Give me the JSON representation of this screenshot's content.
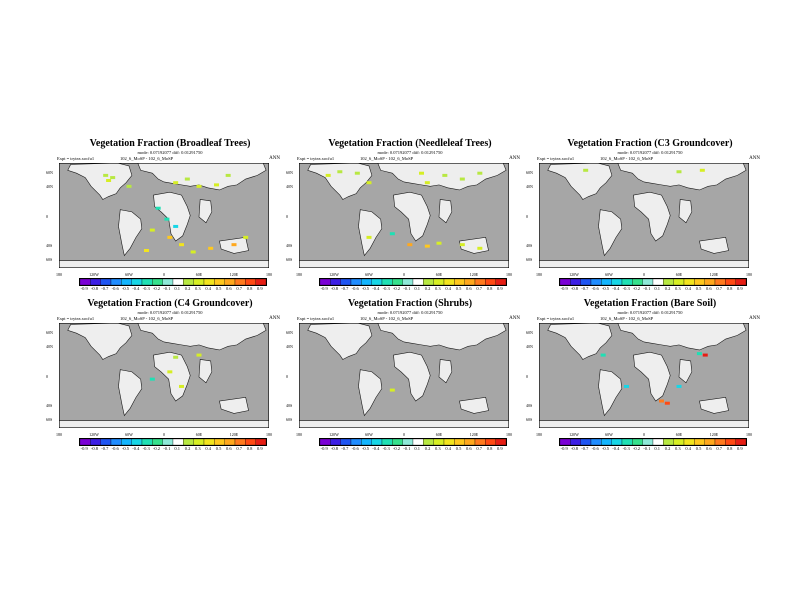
{
  "chart_data": [
    {
      "type": "map",
      "title": "Vegetation Fraction (Broadleaf Trees)",
      "subtitle": "mode: 0.07192077 diff: 0.01291750",
      "expt": "Expt = trytea.xocfu1",
      "model_label": "102_6_MoSP - 102_6_MoSP",
      "season": "ANN",
      "lat_labels": [
        "60N",
        "40N",
        "0",
        "40S",
        "60S"
      ],
      "lon_labels": [
        "180",
        "120W",
        "60W",
        "0",
        "60E",
        "120E",
        "180"
      ],
      "colorbar_labels": [
        "-0.9",
        "-0.8",
        "-0.7",
        "-0.6",
        "-0.5",
        "-0.4",
        "-0.3",
        "-0.2",
        "-0.1",
        "0.1",
        "0.2",
        "0.3",
        "0.4",
        "0.5",
        "0.6",
        "0.7",
        "0.8",
        "0.9"
      ],
      "anomalies": [
        {
          "lon": -100,
          "lat": 55,
          "value": 0.15
        },
        {
          "lon": -88,
          "lat": 52,
          "value": 0.12
        },
        {
          "lon": -95,
          "lat": 48,
          "value": 0.2
        },
        {
          "lon": -60,
          "lat": 40,
          "value": 0.1
        },
        {
          "lon": 20,
          "lat": 45,
          "value": 0.2
        },
        {
          "lon": 40,
          "lat": 50,
          "value": 0.15
        },
        {
          "lon": 60,
          "lat": 40,
          "value": 0.3
        },
        {
          "lon": 90,
          "lat": 42,
          "value": 0.25
        },
        {
          "lon": 110,
          "lat": 55,
          "value": 0.15
        },
        {
          "lon": -10,
          "lat": 10,
          "value": -0.3
        },
        {
          "lon": 5,
          "lat": -5,
          "value": -0.35
        },
        {
          "lon": 20,
          "lat": -15,
          "value": -0.4
        },
        {
          "lon": 10,
          "lat": -30,
          "value": 0.4
        },
        {
          "lon": -20,
          "lat": -20,
          "value": 0.3
        },
        {
          "lon": 30,
          "lat": -40,
          "value": 0.35
        },
        {
          "lon": 80,
          "lat": -45,
          "value": 0.45
        },
        {
          "lon": 120,
          "lat": -40,
          "value": 0.55
        },
        {
          "lon": 140,
          "lat": -30,
          "value": 0.2
        },
        {
          "lon": 50,
          "lat": -50,
          "value": 0.3
        },
        {
          "lon": -30,
          "lat": -48,
          "value": 0.35
        }
      ]
    },
    {
      "type": "map",
      "title": "Vegetation Fraction (Needleleaf Trees)",
      "subtitle": "mode: 0.07192077 diff: 0.01291750",
      "expt": "Expt = trytea.xocfu1",
      "model_label": "102_6_MoSP - 102_6_MoSP",
      "season": "ANN",
      "lat_labels": [
        "60N",
        "40N",
        "0",
        "40S",
        "60S"
      ],
      "lon_labels": [
        "180",
        "120W",
        "60W",
        "0",
        "60E",
        "120E",
        "180"
      ],
      "colorbar_labels": [
        "-0.9",
        "-0.8",
        "-0.7",
        "-0.6",
        "-0.5",
        "-0.4",
        "-0.3",
        "-0.2",
        "-0.1",
        "0.1",
        "0.2",
        "0.3",
        "0.4",
        "0.5",
        "0.6",
        "0.7",
        "0.8",
        "0.9"
      ],
      "anomalies": [
        {
          "lon": -110,
          "lat": 60,
          "value": 0.15
        },
        {
          "lon": -80,
          "lat": 58,
          "value": 0.1
        },
        {
          "lon": -130,
          "lat": 55,
          "value": 0.2
        },
        {
          "lon": 30,
          "lat": 58,
          "value": 0.2
        },
        {
          "lon": 70,
          "lat": 55,
          "value": 0.15
        },
        {
          "lon": 100,
          "lat": 50,
          "value": 0.1
        },
        {
          "lon": 130,
          "lat": 58,
          "value": 0.15
        },
        {
          "lon": -60,
          "lat": 45,
          "value": 0.2
        },
        {
          "lon": 40,
          "lat": 45,
          "value": 0.2
        },
        {
          "lon": 10,
          "lat": -40,
          "value": 0.5
        },
        {
          "lon": 40,
          "lat": -42,
          "value": 0.4
        },
        {
          "lon": 60,
          "lat": -38,
          "value": 0.3
        },
        {
          "lon": -20,
          "lat": -25,
          "value": -0.3
        },
        {
          "lon": 100,
          "lat": -40,
          "value": 0.3
        },
        {
          "lon": 130,
          "lat": -45,
          "value": 0.2
        },
        {
          "lon": -60,
          "lat": -30,
          "value": 0.25
        }
      ]
    },
    {
      "type": "map",
      "title": "Vegetation Fraction (C3 Groundcover)",
      "subtitle": "mode: 0.07192077 diff: 0.01291750",
      "expt": "Expt = trytea.xocfu1",
      "model_label": "102_6_MoSP - 102_6_MoSP",
      "season": "ANN",
      "lat_labels": [
        "60N",
        "40N",
        "0",
        "40S",
        "60S"
      ],
      "lon_labels": [
        "180",
        "120W",
        "60W",
        "0",
        "60E",
        "120E",
        "180"
      ],
      "colorbar_labels": [
        "-0.9",
        "-0.8",
        "-0.7",
        "-0.6",
        "-0.5",
        "-0.4",
        "-0.3",
        "-0.2",
        "-0.1",
        "0.1",
        "0.2",
        "0.3",
        "0.4",
        "0.5",
        "0.6",
        "0.7",
        "0.8",
        "0.9"
      ],
      "anomalies": [
        {
          "lon": 100,
          "lat": 62,
          "value": 0.2
        },
        {
          "lon": 60,
          "lat": 60,
          "value": 0.1
        },
        {
          "lon": -100,
          "lat": 62,
          "value": 0.1
        }
      ]
    },
    {
      "type": "map",
      "title": "Vegetation Fraction (C4 Groundcover)",
      "subtitle": "mode: 0.07192077 diff: 0.01291750",
      "expt": "Expt = trytea.xocfu1",
      "model_label": "102_6_MoSP - 102_6_MoSP",
      "season": "ANN",
      "lat_labels": [
        "60N",
        "40N",
        "0",
        "40S",
        "60S"
      ],
      "lon_labels": [
        "180",
        "120W",
        "60W",
        "0",
        "60E",
        "120E",
        "180"
      ],
      "colorbar_labels": [
        "-0.9",
        "-0.8",
        "-0.7",
        "-0.6",
        "-0.5",
        "-0.4",
        "-0.3",
        "-0.2",
        "-0.1",
        "0.1",
        "0.2",
        "0.3",
        "0.4",
        "0.5",
        "0.6",
        "0.7",
        "0.8",
        "0.9"
      ],
      "anomalies": [
        {
          "lon": 20,
          "lat": 25,
          "value": 0.15
        },
        {
          "lon": 60,
          "lat": 28,
          "value": 0.2
        },
        {
          "lon": 10,
          "lat": 5,
          "value": 0.2
        },
        {
          "lon": -20,
          "lat": -5,
          "value": -0.3
        },
        {
          "lon": 30,
          "lat": -15,
          "value": 0.3
        }
      ]
    },
    {
      "type": "map",
      "title": "Vegetation Fraction (Shrubs)",
      "subtitle": "mode: 0.07192077 diff: 0.01291750",
      "expt": "Expt = trytea.xocfu1",
      "model_label": "102_6_MoSP - 102_6_MoSP",
      "season": "ANN",
      "lat_labels": [
        "60N",
        "40N",
        "0",
        "40S",
        "60S"
      ],
      "lon_labels": [
        "180",
        "120W",
        "60W",
        "0",
        "60E",
        "120E",
        "180"
      ],
      "colorbar_labels": [
        "-0.9",
        "-0.8",
        "-0.7",
        "-0.6",
        "-0.5",
        "-0.4",
        "-0.3",
        "-0.2",
        "-0.1",
        "0.1",
        "0.2",
        "0.3",
        "0.4",
        "0.5",
        "0.6",
        "0.7",
        "0.8",
        "0.9"
      ],
      "anomalies": [
        {
          "lon": -20,
          "lat": -20,
          "value": 0.25
        }
      ]
    },
    {
      "type": "map",
      "title": "Vegetation Fraction (Bare Soil)",
      "subtitle": "mode: 0.07192077 diff: 0.01291750",
      "expt": "Expt = trytea.xocfu1",
      "model_label": "102_6_MoSP - 102_6_MoSP",
      "season": "ANN",
      "lat_labels": [
        "60N",
        "40N",
        "0",
        "40S",
        "60S"
      ],
      "lon_labels": [
        "180",
        "120W",
        "60W",
        "0",
        "60E",
        "120E",
        "180"
      ],
      "colorbar_labels": [
        "-0.9",
        "-0.8",
        "-0.7",
        "-0.6",
        "-0.5",
        "-0.4",
        "-0.3",
        "-0.2",
        "-0.1",
        "0.1",
        "0.2",
        "0.3",
        "0.4",
        "0.5",
        "0.6",
        "0.7",
        "0.8",
        "0.9"
      ],
      "anomalies": [
        {
          "lon": -70,
          "lat": 28,
          "value": -0.3
        },
        {
          "lon": 95,
          "lat": 30,
          "value": -0.3
        },
        {
          "lon": 105,
          "lat": 28,
          "value": 0.8
        },
        {
          "lon": -30,
          "lat": -15,
          "value": -0.4
        },
        {
          "lon": 30,
          "lat": -35,
          "value": 0.7
        },
        {
          "lon": 40,
          "lat": -38,
          "value": 0.75
        },
        {
          "lon": 60,
          "lat": -15,
          "value": -0.5
        }
      ]
    }
  ],
  "colors": {
    "ocean": "#a6a6a6",
    "land": "#eeeeee",
    "coast": "#1a1a1a",
    "scale": [
      "#7a00d6",
      "#3c1fe6",
      "#1f55f2",
      "#1f8cff",
      "#12b5ff",
      "#18d6e6",
      "#1ee0b4",
      "#36e08c",
      "#8ee8d8",
      "#ffffff",
      "#b8e842",
      "#d6ee24",
      "#f2e41e",
      "#ffc81e",
      "#ffa81e",
      "#ff7a1e",
      "#ff4a14",
      "#e61e14"
    ]
  }
}
